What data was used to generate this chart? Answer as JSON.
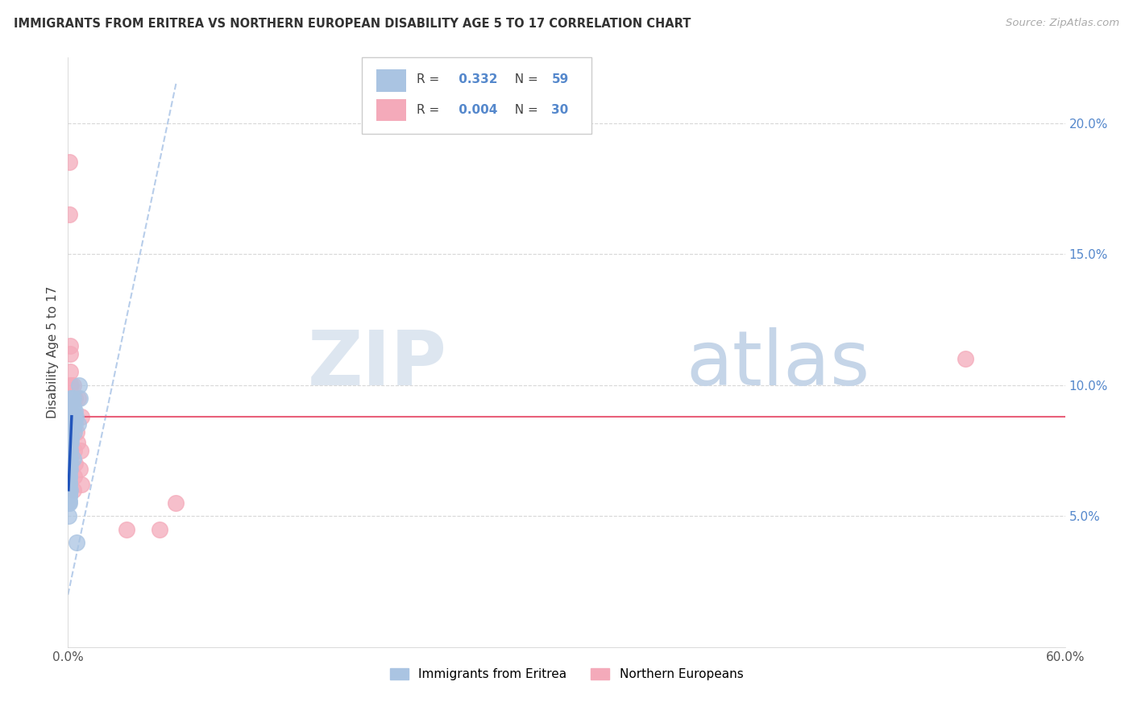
{
  "title": "IMMIGRANTS FROM ERITREA VS NORTHERN EUROPEAN DISABILITY AGE 5 TO 17 CORRELATION CHART",
  "source": "Source: ZipAtlas.com",
  "ylabel": "Disability Age 5 to 17",
  "xlim": [
    0.0,
    0.6
  ],
  "ylim": [
    0.0,
    0.225
  ],
  "xticks": [
    0.0,
    0.1,
    0.2,
    0.3,
    0.4,
    0.5,
    0.6
  ],
  "xticklabels": [
    "0.0%",
    "",
    "",
    "",
    "",
    "",
    "60.0%"
  ],
  "yticks_right": [
    0.05,
    0.1,
    0.15,
    0.2
  ],
  "ytick_right_labels": [
    "5.0%",
    "10.0%",
    "15.0%",
    "20.0%"
  ],
  "legend_R1": "0.332",
  "legend_N1": "59",
  "legend_R2": "0.004",
  "legend_N2": "30",
  "blue_color": "#aac4e2",
  "blue_line_color": "#2255bb",
  "pink_color": "#f4aaba",
  "pink_line_color": "#e8607a",
  "dashed_line_color": "#b0c8e8",
  "grid_color": "#d8d8d8",
  "title_color": "#333333",
  "axis_label_color": "#444444",
  "right_tick_color": "#5588cc",
  "eritrea_x": [
    0.0003,
    0.0005,
    0.0005,
    0.0005,
    0.0006,
    0.0006,
    0.0007,
    0.0007,
    0.0007,
    0.0008,
    0.0008,
    0.0008,
    0.0009,
    0.0009,
    0.0009,
    0.001,
    0.001,
    0.001,
    0.001,
    0.001,
    0.0012,
    0.0012,
    0.0012,
    0.0013,
    0.0013,
    0.0014,
    0.0014,
    0.0015,
    0.0015,
    0.0016,
    0.0016,
    0.0017,
    0.0017,
    0.0018,
    0.0018,
    0.0019,
    0.002,
    0.002,
    0.002,
    0.0021,
    0.0022,
    0.0022,
    0.0023,
    0.0024,
    0.0025,
    0.003,
    0.003,
    0.0032,
    0.0033,
    0.0035,
    0.0038,
    0.004,
    0.0042,
    0.0045,
    0.005,
    0.006,
    0.007,
    0.0065,
    0.003
  ],
  "eritrea_y": [
    0.055,
    0.06,
    0.065,
    0.05,
    0.058,
    0.068,
    0.055,
    0.062,
    0.07,
    0.056,
    0.063,
    0.072,
    0.058,
    0.065,
    0.075,
    0.058,
    0.065,
    0.075,
    0.082,
    0.088,
    0.06,
    0.068,
    0.075,
    0.07,
    0.078,
    0.072,
    0.08,
    0.075,
    0.085,
    0.078,
    0.085,
    0.08,
    0.088,
    0.082,
    0.09,
    0.085,
    0.08,
    0.088,
    0.095,
    0.085,
    0.09,
    0.095,
    0.092,
    0.085,
    0.088,
    0.092,
    0.085,
    0.09,
    0.095,
    0.088,
    0.082,
    0.085,
    0.09,
    0.088,
    0.04,
    0.085,
    0.095,
    0.1,
    0.072
  ],
  "northern_x": [
    0.0008,
    0.001,
    0.0012,
    0.0013,
    0.0015,
    0.0015,
    0.0018,
    0.002,
    0.002,
    0.0022,
    0.0025,
    0.003,
    0.003,
    0.0032,
    0.0035,
    0.004,
    0.005,
    0.0055,
    0.006,
    0.007,
    0.0075,
    0.008,
    0.035,
    0.055,
    0.065,
    0.008,
    0.003,
    0.004,
    0.0035,
    0.54
  ],
  "northern_y": [
    0.185,
    0.165,
    0.105,
    0.115,
    0.1,
    0.112,
    0.095,
    0.09,
    0.1,
    0.095,
    0.085,
    0.082,
    0.1,
    0.088,
    0.075,
    0.095,
    0.082,
    0.078,
    0.095,
    0.068,
    0.075,
    0.062,
    0.045,
    0.045,
    0.055,
    0.088,
    0.06,
    0.07,
    0.065,
    0.11
  ],
  "blue_trend_x": [
    0.0003,
    0.0022
  ],
  "blue_trend_y": [
    0.06,
    0.088
  ],
  "dashed_trend_x": [
    0.0,
    0.065
  ],
  "dashed_trend_y": [
    0.02,
    0.215
  ],
  "pink_trend_y": 0.088
}
